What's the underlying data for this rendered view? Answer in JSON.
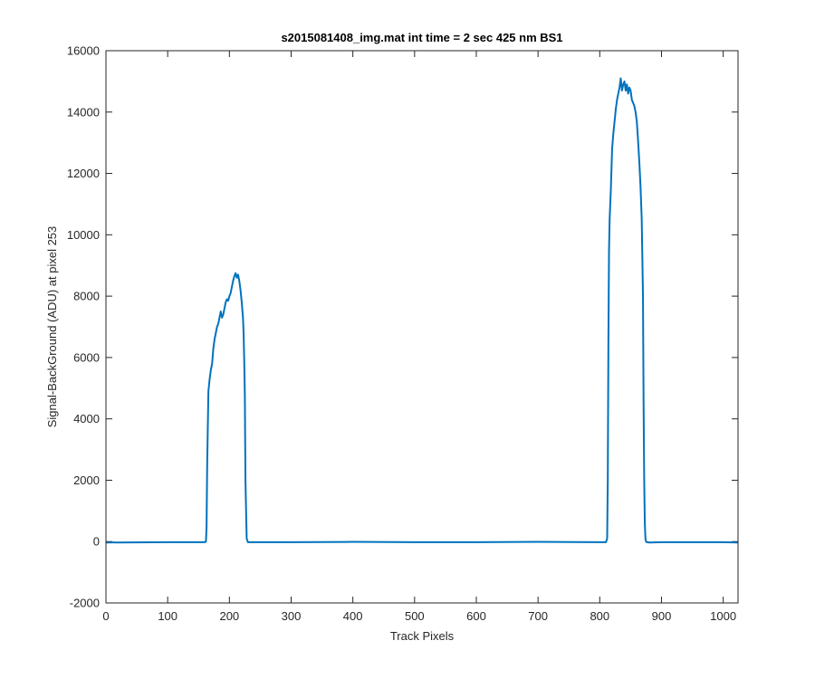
{
  "chart_data": {
    "type": "line",
    "title": "s2015081408_img.mat int time = 2 sec  425 nm BS1",
    "xlabel": "Track Pixels",
    "ylabel": "Signal-BackGround (ADU) at pixel 253",
    "xlim": [
      0,
      1024
    ],
    "ylim": [
      -2000,
      16000
    ],
    "xticks": [
      0,
      100,
      200,
      300,
      400,
      500,
      600,
      700,
      800,
      900,
      1000
    ],
    "yticks": [
      -2000,
      0,
      2000,
      4000,
      6000,
      8000,
      10000,
      12000,
      14000,
      16000
    ],
    "grid": false,
    "line_color": "#0072BD",
    "series": [
      {
        "x": [
          0,
          100,
          160,
          162,
          163,
          164,
          166,
          168,
          170,
          172,
          174,
          176,
          178,
          180,
          182,
          184,
          186,
          188,
          190,
          192,
          194,
          196,
          198,
          200,
          202,
          204,
          206,
          208,
          210,
          212,
          214,
          216,
          218,
          220,
          222,
          223,
          224,
          225,
          226,
          228,
          230,
          300,
          400,
          500,
          600,
          700,
          800,
          810,
          812,
          813,
          814,
          815,
          816,
          818,
          820,
          822,
          824,
          826,
          828,
          830,
          832,
          834,
          836,
          838,
          840,
          842,
          844,
          846,
          848,
          850,
          852,
          854,
          856,
          858,
          860,
          862,
          864,
          866,
          868,
          870,
          871,
          872,
          873,
          874,
          875,
          876,
          878,
          880,
          900,
          1000,
          1024
        ],
        "y": [
          -30,
          -20,
          -20,
          0,
          500,
          2500,
          4900,
          5300,
          5600,
          5800,
          6300,
          6600,
          6800,
          7000,
          7100,
          7300,
          7500,
          7300,
          7400,
          7600,
          7800,
          7900,
          7850,
          8000,
          8100,
          8300,
          8500,
          8650,
          8750,
          8600,
          8700,
          8500,
          8200,
          7800,
          7300,
          6800,
          5900,
          4800,
          2000,
          100,
          -20,
          -20,
          -10,
          -20,
          -20,
          -10,
          -20,
          -20,
          100,
          2000,
          6500,
          9500,
          10500,
          11500,
          12800,
          13300,
          13700,
          14100,
          14400,
          14600,
          14800,
          15100,
          14700,
          14900,
          15000,
          14700,
          14900,
          14600,
          14800,
          14700,
          14400,
          14300,
          14200,
          14000,
          13700,
          13100,
          12400,
          11600,
          10500,
          8000,
          4500,
          2000,
          600,
          100,
          0,
          -20,
          -20,
          -30,
          -20,
          -20,
          -30
        ]
      }
    ]
  }
}
